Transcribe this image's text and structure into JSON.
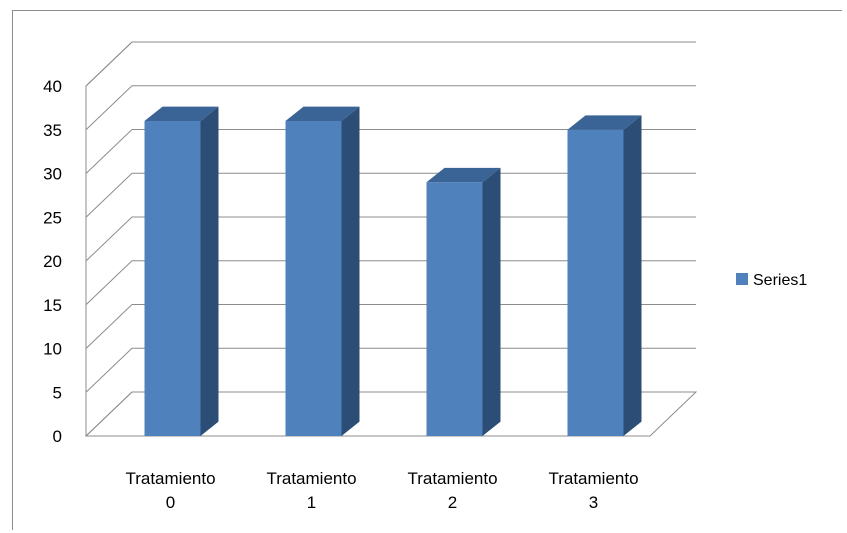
{
  "chart_data": {
    "type": "bar",
    "categories": [
      [
        "Tratamiento",
        "0"
      ],
      [
        "Tratamiento",
        "1"
      ],
      [
        "Tratamiento",
        "2"
      ],
      [
        "Tratamiento",
        "3"
      ]
    ],
    "series": [
      {
        "name": "Series1",
        "values": [
          36,
          36,
          29,
          35
        ],
        "color": "#4f81bd"
      }
    ],
    "ylim": [
      0,
      40
    ],
    "yticks": [
      0,
      5,
      10,
      15,
      20,
      25,
      30,
      35,
      40
    ],
    "grid": true,
    "legend": "right",
    "style": "3d-column"
  }
}
